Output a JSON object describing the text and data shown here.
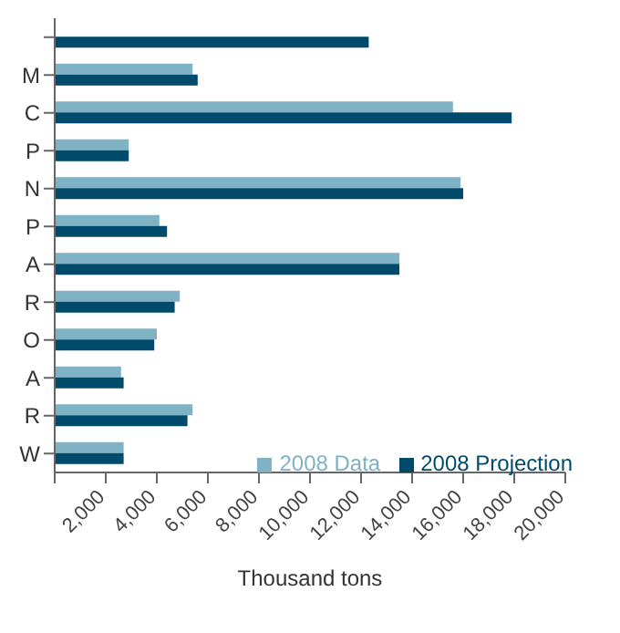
{
  "chart_data": {
    "type": "bar",
    "orientation": "horizontal",
    "xlabel": "Thousand tons",
    "categories": [
      null,
      "M",
      "C",
      "P",
      "N",
      "P",
      "A",
      "R",
      "O",
      "A",
      "R",
      "W"
    ],
    "series": [
      {
        "name": "2008 Data",
        "color": "#7fb2c5",
        "values": [
          null,
          5400,
          15600,
          2900,
          15900,
          4100,
          13500,
          4900,
          4000,
          2600,
          5400,
          2700
        ]
      },
      {
        "name": "2008 Projection",
        "color": "#004a6b",
        "values": [
          12300,
          5600,
          17900,
          2900,
          16000,
          4400,
          13500,
          4700,
          3900,
          2700,
          5200,
          2700
        ]
      }
    ],
    "xlim": [
      0,
      20000
    ],
    "xticks": [
      {
        "value": 0,
        "label": null
      },
      {
        "value": 2000,
        "label": "2,000"
      },
      {
        "value": 4000,
        "label": "4,000"
      },
      {
        "value": 6000,
        "label": "6,000"
      },
      {
        "value": 8000,
        "label": "8,000"
      },
      {
        "value": 10000,
        "label": "10,000"
      },
      {
        "value": 12000,
        "label": "12,000"
      },
      {
        "value": 14000,
        "label": "14,000"
      },
      {
        "value": 16000,
        "label": "16,000"
      },
      {
        "value": 18000,
        "label": "18,000"
      },
      {
        "value": 20000,
        "label": "20,000"
      }
    ],
    "grid": false,
    "legend": "bottom right"
  }
}
